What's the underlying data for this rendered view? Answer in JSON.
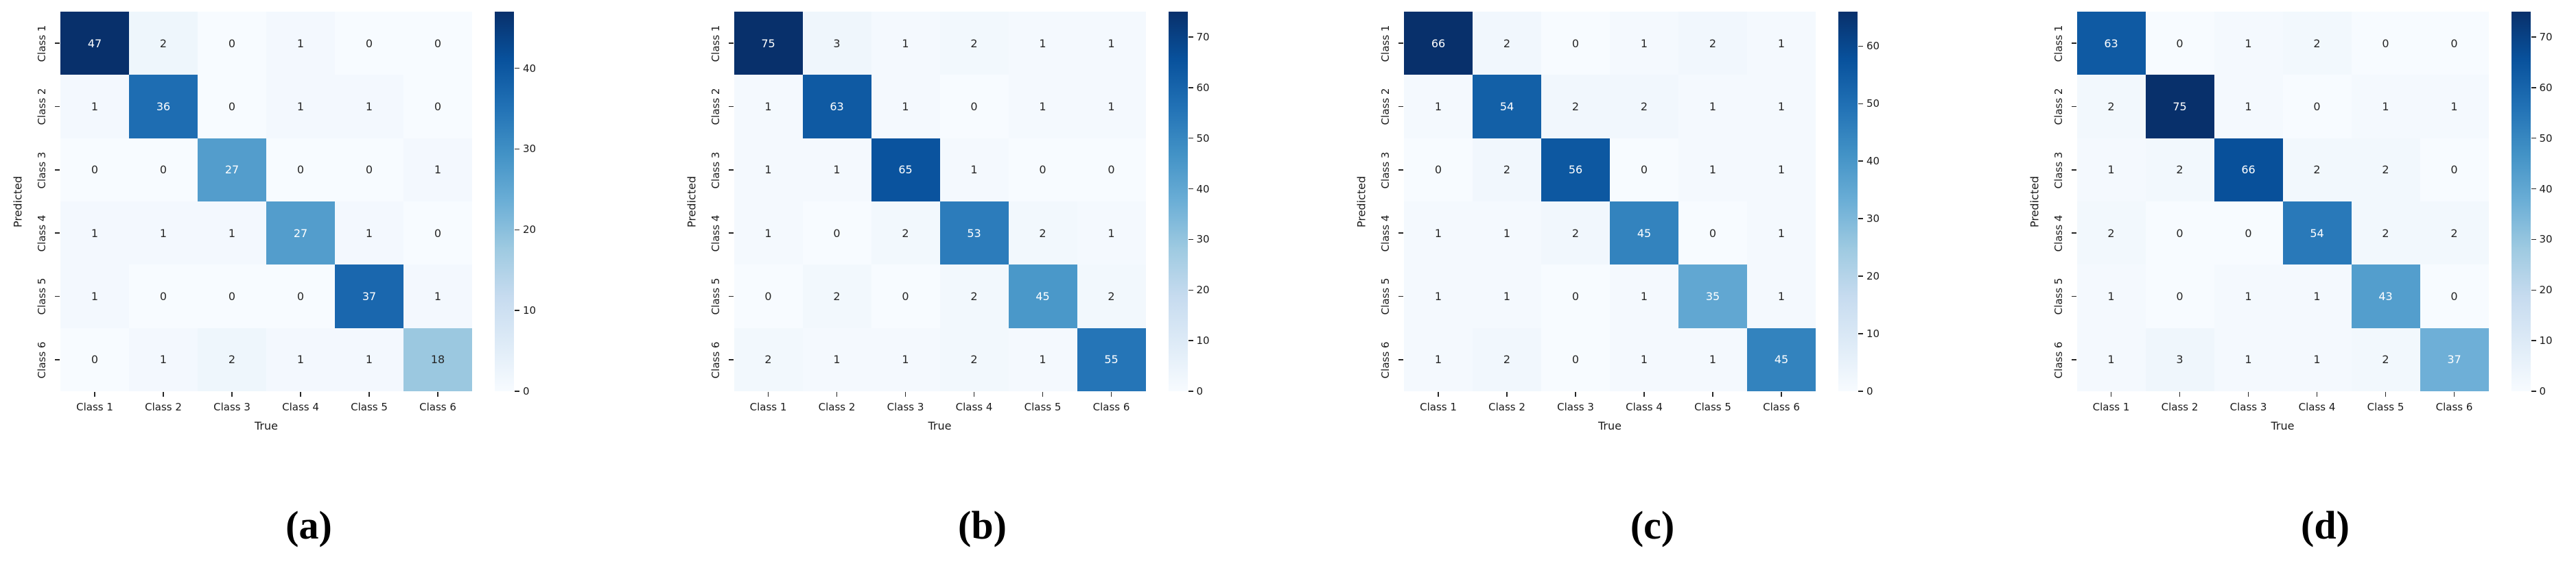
{
  "figure": {
    "background": "#ffffff",
    "colormap_name": "Blues",
    "colormap_stops": [
      "#f7fbff",
      "#deebf7",
      "#c6dbef",
      "#9ecae1",
      "#6baed6",
      "#4292c6",
      "#2171b5",
      "#08519c",
      "#08306b"
    ],
    "annotation_dark_color": "#262626",
    "annotation_light_color": "#ffffff",
    "tick_color": "#262626"
  },
  "chart_data": [
    {
      "type": "heatmap",
      "panel_label": "(a)",
      "xlabel": "True",
      "ylabel": "Predicted",
      "x_categories": [
        "Class 1",
        "Class 2",
        "Class 3",
        "Class 4",
        "Class 5",
        "Class 6"
      ],
      "y_categories": [
        "Class 1",
        "Class 2",
        "Class 3",
        "Class 4",
        "Class 5",
        "Class 6"
      ],
      "values": [
        [
          47,
          2,
          0,
          1,
          0,
          0
        ],
        [
          1,
          36,
          0,
          1,
          1,
          0
        ],
        [
          0,
          0,
          27,
          0,
          0,
          1
        ],
        [
          1,
          1,
          1,
          27,
          1,
          0
        ],
        [
          1,
          0,
          0,
          0,
          37,
          1
        ],
        [
          0,
          1,
          2,
          1,
          1,
          18
        ]
      ],
      "vmin": 0,
      "vmax": 47,
      "colorbar_ticks": [
        0,
        10,
        20,
        30,
        40
      ],
      "legend_position": "right"
    },
    {
      "type": "heatmap",
      "panel_label": "(b)",
      "xlabel": "True",
      "ylabel": "Predicted",
      "x_categories": [
        "Class 1",
        "Class 2",
        "Class 3",
        "Class 4",
        "Class 5",
        "Class 6"
      ],
      "y_categories": [
        "Class 1",
        "Class 2",
        "Class 3",
        "Class 4",
        "Class 5",
        "Class 6"
      ],
      "values": [
        [
          75,
          3,
          1,
          2,
          1,
          1
        ],
        [
          1,
          63,
          1,
          0,
          1,
          1
        ],
        [
          1,
          1,
          65,
          1,
          0,
          0
        ],
        [
          1,
          0,
          2,
          53,
          2,
          1
        ],
        [
          0,
          2,
          0,
          2,
          45,
          2
        ],
        [
          2,
          1,
          1,
          2,
          1,
          55
        ]
      ],
      "vmin": 0,
      "vmax": 75,
      "colorbar_ticks": [
        0,
        10,
        20,
        30,
        40,
        50,
        60,
        70
      ],
      "legend_position": "right"
    },
    {
      "type": "heatmap",
      "panel_label": "(c)",
      "xlabel": "True",
      "ylabel": "Predicted",
      "x_categories": [
        "Class 1",
        "Class 2",
        "Class 3",
        "Class 4",
        "Class 5",
        "Class 6"
      ],
      "y_categories": [
        "Class 1",
        "Class 2",
        "Class 3",
        "Class 4",
        "Class 5",
        "Class 6"
      ],
      "values": [
        [
          66,
          2,
          0,
          1,
          2,
          1
        ],
        [
          1,
          54,
          2,
          2,
          1,
          1
        ],
        [
          0,
          2,
          56,
          0,
          1,
          1
        ],
        [
          1,
          1,
          2,
          45,
          0,
          1
        ],
        [
          1,
          1,
          0,
          1,
          35,
          1
        ],
        [
          1,
          2,
          0,
          1,
          1,
          45
        ]
      ],
      "vmin": 0,
      "vmax": 66,
      "colorbar_ticks": [
        0,
        10,
        20,
        30,
        40,
        50,
        60
      ],
      "legend_position": "right"
    },
    {
      "type": "heatmap",
      "panel_label": "(d)",
      "xlabel": "True",
      "ylabel": "Predicted",
      "x_categories": [
        "Class 1",
        "Class 2",
        "Class 3",
        "Class 4",
        "Class 5",
        "Class 6"
      ],
      "y_categories": [
        "Class 1",
        "Class 2",
        "Class 3",
        "Class 4",
        "Class 5",
        "Class 6"
      ],
      "values": [
        [
          63,
          0,
          1,
          2,
          0,
          0
        ],
        [
          2,
          75,
          1,
          0,
          1,
          1
        ],
        [
          1,
          2,
          66,
          2,
          2,
          0
        ],
        [
          2,
          0,
          0,
          54,
          2,
          2
        ],
        [
          1,
          0,
          1,
          1,
          43,
          0
        ],
        [
          1,
          3,
          1,
          1,
          2,
          37
        ]
      ],
      "vmin": 0,
      "vmax": 75,
      "colorbar_ticks": [
        0,
        10,
        20,
        30,
        40,
        50,
        60,
        70
      ],
      "legend_position": "right"
    }
  ]
}
